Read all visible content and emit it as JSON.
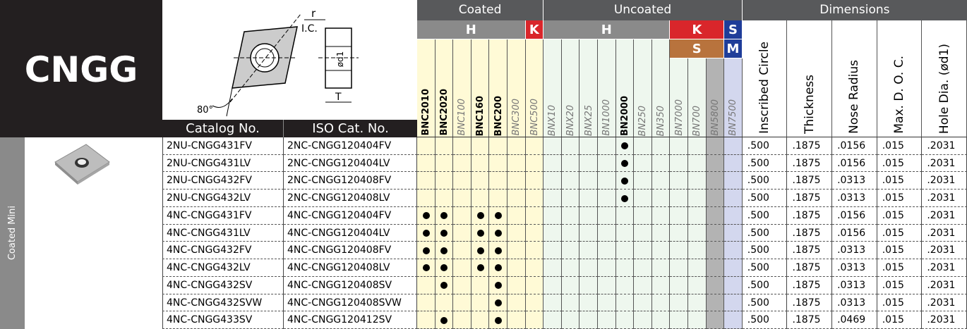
{
  "title": "CNGG",
  "side_label": "Coated Mini",
  "diagram": {
    "r": "r",
    "ic": "I.C.",
    "d1": "ød1",
    "angle": "80°",
    "t": "T"
  },
  "headers": {
    "catalog": "Catalog No.",
    "iso": "ISO Cat. No."
  },
  "grade_groups": [
    {
      "label": "Coated",
      "span": 7
    },
    {
      "label": "Uncoated",
      "span": 11
    }
  ],
  "bands": [
    [
      {
        "label": "H",
        "span": 6,
        "color": "#8a8a8a"
      },
      {
        "label": "K",
        "span": 1,
        "color": "#d9262b"
      },
      {
        "label": "H",
        "span": 7,
        "color": "#8a8a8a"
      },
      {
        "label": "K",
        "span": 3,
        "color": "#d9262b"
      },
      {
        "label": "S",
        "span": 1,
        "color": "#1f3d99"
      }
    ],
    [
      {
        "span": 14
      },
      {
        "label": "S",
        "span": 3,
        "color": "#b8733d"
      },
      {
        "label": "M",
        "span": 1,
        "color": "#1f3d99"
      }
    ]
  ],
  "grades": [
    {
      "name": "BNC2010",
      "bold": true,
      "color": "#fffad6"
    },
    {
      "name": "BNC2020",
      "bold": true,
      "color": "#fffad6"
    },
    {
      "name": "BNC100",
      "color": "#fffad6"
    },
    {
      "name": "BNC160",
      "bold": true,
      "color": "#fffad6"
    },
    {
      "name": "BNC200",
      "bold": true,
      "color": "#fffad6"
    },
    {
      "name": "BNC300",
      "color": "#fffad6"
    },
    {
      "name": "BNC500",
      "color": "#fffad6"
    },
    {
      "name": "BNX10",
      "color": "#eef7ee"
    },
    {
      "name": "BNX20",
      "color": "#eef7ee"
    },
    {
      "name": "BNX25",
      "color": "#eef7ee"
    },
    {
      "name": "BN1000",
      "color": "#eef7ee"
    },
    {
      "name": "BN2000",
      "bold": true,
      "color": "#eef7ee"
    },
    {
      "name": "BN250",
      "color": "#eef7ee"
    },
    {
      "name": "BN350",
      "color": "#eef7ee"
    },
    {
      "name": "BN7000",
      "color": "#eef7ee"
    },
    {
      "name": "BN700",
      "color": "#eef7ee"
    },
    {
      "name": "BN5800",
      "color": "#b3b3b3"
    },
    {
      "name": "BN7500",
      "color": "#d3d7ee"
    }
  ],
  "dimensions": {
    "label": "Dimensions",
    "columns": [
      "Inscribed Circle",
      "Thickness",
      "Nose Radius",
      "Max. D. O. C.",
      "Hole Dia. (ød1)"
    ]
  },
  "rows": [
    {
      "catalog": "2NU-CNGG431FV",
      "iso": "2NC-CNGG120404FV",
      "grades": [
        "BN2000"
      ],
      "dims": [
        ".500",
        ".1875",
        ".0156",
        ".015",
        ".2031"
      ]
    },
    {
      "catalog": "2NU-CNGG431LV",
      "iso": "2NC-CNGG120404LV",
      "grades": [
        "BN2000"
      ],
      "dims": [
        ".500",
        ".1875",
        ".0156",
        ".015",
        ".2031"
      ]
    },
    {
      "catalog": "2NU-CNGG432FV",
      "iso": "2NC-CNGG120408FV",
      "grades": [
        "BN2000"
      ],
      "dims": [
        ".500",
        ".1875",
        ".0313",
        ".015",
        ".2031"
      ]
    },
    {
      "catalog": "2NU-CNGG432LV",
      "iso": "2NC-CNGG120408LV",
      "grades": [
        "BN2000"
      ],
      "dims": [
        ".500",
        ".1875",
        ".0313",
        ".015",
        ".2031"
      ]
    },
    {
      "catalog": "4NC-CNGG431FV",
      "iso": "4NC-CNGG120404FV",
      "grades": [
        "BNC2010",
        "BNC2020",
        "BNC160",
        "BNC200"
      ],
      "dims": [
        ".500",
        ".1875",
        ".0156",
        ".015",
        ".2031"
      ]
    },
    {
      "catalog": "4NC-CNGG431LV",
      "iso": "4NC-CNGG120404LV",
      "grades": [
        "BNC2010",
        "BNC2020",
        "BNC160",
        "BNC200"
      ],
      "dims": [
        ".500",
        ".1875",
        ".0156",
        ".015",
        ".2031"
      ]
    },
    {
      "catalog": "4NC-CNGG432FV",
      "iso": "4NC-CNGG120408FV",
      "grades": [
        "BNC2010",
        "BNC2020",
        "BNC160",
        "BNC200"
      ],
      "dims": [
        ".500",
        ".1875",
        ".0313",
        ".015",
        ".2031"
      ]
    },
    {
      "catalog": "4NC-CNGG432LV",
      "iso": "4NC-CNGG120408LV",
      "grades": [
        "BNC2010",
        "BNC2020",
        "BNC160",
        "BNC200"
      ],
      "dims": [
        ".500",
        ".1875",
        ".0313",
        ".015",
        ".2031"
      ]
    },
    {
      "catalog": "4NC-CNGG432SV",
      "iso": "4NC-CNGG120408SV",
      "grades": [
        "BNC2020",
        "BNC200"
      ],
      "dims": [
        ".500",
        ".1875",
        ".0313",
        ".015",
        ".2031"
      ]
    },
    {
      "catalog": "4NC-CNGG432SVW",
      "iso": "4NC-CNGG120408SVW",
      "grades": [
        "BNC200"
      ],
      "dims": [
        ".500",
        ".1875",
        ".0313",
        ".015",
        ".2031"
      ]
    },
    {
      "catalog": "4NC-CNGG433SV",
      "iso": "4NC-CNGG120412SV",
      "grades": [
        "BNC2020",
        "BNC200"
      ],
      "dims": [
        ".500",
        ".1875",
        ".0469",
        ".015",
        ".2031"
      ]
    }
  ]
}
